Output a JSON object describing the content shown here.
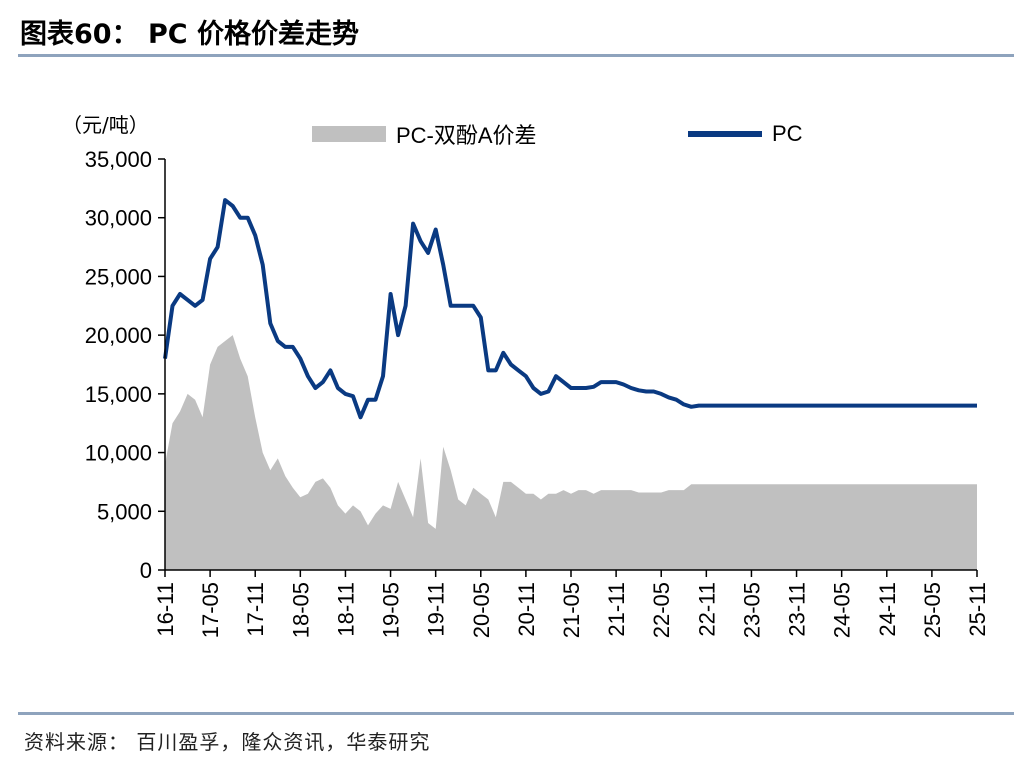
{
  "header": {
    "title": "图表60： PC 价格价差走势"
  },
  "footer": {
    "source": "资料来源： 百川盈孚，隆众资讯，华泰研究"
  },
  "chart_data": {
    "type": "line",
    "title": "",
    "unit_label": "（元/吨）",
    "ylim": [
      0,
      35000
    ],
    "ytick_labels": [
      "0",
      "5,000",
      "10,000",
      "15,000",
      "20,000",
      "25,000",
      "30,000",
      "35,000"
    ],
    "ytick_values": [
      0,
      5000,
      10000,
      15000,
      20000,
      25000,
      30000,
      35000
    ],
    "xtick_labels": [
      "16-11",
      "17-05",
      "17-11",
      "18-05",
      "18-11",
      "19-05",
      "19-11",
      "20-05",
      "20-11",
      "21-05",
      "21-11",
      "22-05",
      "22-11",
      "23-05",
      "23-11",
      "24-05",
      "24-11",
      "25-05",
      "25-11"
    ],
    "legend": [
      {
        "name": "PC-双酚A价差",
        "kind": "area",
        "color": "#c0c0c0"
      },
      {
        "name": "PC",
        "kind": "line",
        "color": "#0a3a82"
      }
    ],
    "colors": {
      "pc_line": "#0a3a82",
      "spread_area": "#c0c0c0",
      "axis": "#000000",
      "rule": "#8ea3bd"
    },
    "x_months": [
      0,
      1,
      2,
      3,
      4,
      5,
      6,
      7,
      8,
      9,
      10,
      11,
      12,
      13,
      14,
      15,
      16,
      17,
      18,
      19,
      20,
      21,
      22,
      23,
      24,
      25,
      26,
      27,
      28,
      29,
      30,
      31,
      32,
      33,
      34,
      35,
      36,
      37,
      38,
      39,
      40,
      41,
      42,
      43,
      44,
      45,
      46,
      47,
      48,
      49,
      50,
      51,
      52,
      53,
      54,
      55,
      56,
      57,
      58,
      59,
      60,
      61,
      62,
      63,
      64,
      65,
      66,
      67,
      68,
      69,
      70,
      71,
      72,
      73,
      74,
      75,
      76,
      77,
      78,
      79,
      80,
      81,
      82,
      83,
      84,
      85,
      86,
      87,
      88,
      89,
      90,
      91,
      92,
      93,
      94,
      95,
      96,
      97,
      98,
      99,
      100,
      101,
      102,
      103,
      104,
      105,
      106,
      107,
      108
    ],
    "series": [
      {
        "name": "PC",
        "values": [
          18000,
          22500,
          23500,
          23000,
          22500,
          23000,
          26500,
          27500,
          31500,
          31000,
          30000,
          30000,
          28500,
          26000,
          21000,
          19500,
          19000,
          19000,
          18000,
          16500,
          15500,
          16000,
          17000,
          15500,
          15000,
          14800,
          13000,
          14500,
          14500,
          16500,
          23500,
          20000,
          22500,
          29500,
          28000,
          27000,
          29000,
          26000,
          22500,
          22500,
          22500,
          22500,
          21500,
          17000,
          17000,
          18500,
          17500,
          17000,
          16500,
          15500,
          15000,
          15200,
          16500,
          16000,
          15500,
          15500,
          15500,
          15600,
          16000,
          16000,
          16000,
          15800,
          15500,
          15300,
          15200,
          15200,
          15000,
          14700,
          14500,
          14100,
          13900,
          14000,
          14000,
          14000,
          14000,
          14000,
          14000,
          14000,
          14000,
          14000,
          14000,
          14000,
          14000,
          14000,
          14000,
          14000,
          14000,
          14000,
          14000,
          14000,
          14000,
          14000,
          14000,
          14000,
          14000,
          14000,
          14000,
          14000,
          14000,
          14000,
          14000,
          14000,
          14000,
          14000,
          14000,
          14000,
          14000,
          14000,
          14000
        ]
      },
      {
        "name": "PC-双酚A价差",
        "values": [
          9000,
          12500,
          13500,
          15000,
          14500,
          13000,
          17500,
          19000,
          19500,
          20000,
          18000,
          16500,
          13000,
          10000,
          8500,
          9500,
          8000,
          7000,
          6200,
          6500,
          7500,
          7800,
          7000,
          5500,
          4800,
          5500,
          5000,
          3800,
          4800,
          5500,
          5200,
          7500,
          6000,
          4500,
          9500,
          4000,
          3500,
          10500,
          8500,
          6000,
          5500,
          7000,
          6500,
          6000,
          4500,
          7500,
          7500,
          7000,
          6500,
          6500,
          6000,
          6500,
          6500,
          6800,
          6500,
          6800,
          6800,
          6500,
          6800,
          6800,
          6800,
          6800,
          6800,
          6600,
          6600,
          6600,
          6600,
          6800,
          6800,
          6800,
          7300,
          7300,
          7300,
          7300,
          7300,
          7300,
          7300,
          7300,
          7300,
          7300,
          7300,
          7300,
          7300,
          7300,
          7300,
          7300,
          7300,
          7300,
          7300,
          7300,
          7300,
          7300,
          7300,
          7300,
          7300,
          7300,
          7300,
          7300,
          7300,
          7300,
          7300,
          7300,
          7300,
          7300,
          7300,
          7300,
          7300,
          7300,
          7300
        ]
      }
    ]
  }
}
